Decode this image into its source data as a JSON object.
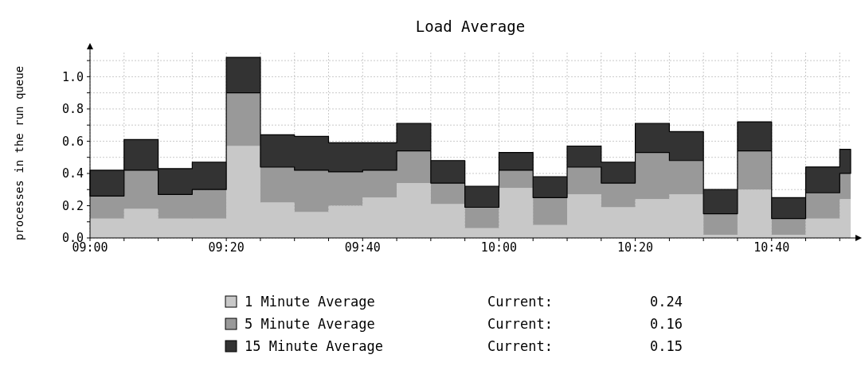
{
  "chart_data": {
    "type": "area",
    "title": "Load Average",
    "ylabel": "processes in the run queue",
    "stacked": true,
    "grid": true,
    "legend": "bottom",
    "x": [
      9,
      9.0833,
      9.0833,
      9.1667,
      9.1667,
      9.25,
      9.25,
      9.3333,
      9.3333,
      9.4167,
      9.4167,
      9.5,
      9.5,
      9.5833,
      9.5833,
      9.6667,
      9.6667,
      9.75,
      9.75,
      9.8333,
      9.8333,
      9.9167,
      9.9167,
      10,
      10,
      10.0833,
      10.0833,
      10.1667,
      10.1667,
      10.25,
      10.25,
      10.3333,
      10.3333,
      10.4167,
      10.4167,
      10.5,
      10.5,
      10.5833,
      10.5833,
      10.6667,
      10.6667,
      10.75,
      10.75,
      10.8333,
      10.8333,
      10.86
    ],
    "series": [
      {
        "name": "1 Minute Average",
        "color": "#c8c8c8",
        "values": [
          0.12,
          0.12,
          0.18,
          0.18,
          0.12,
          0.12,
          0.12,
          0.12,
          0.57,
          0.57,
          0.22,
          0.22,
          0.16,
          0.16,
          0.2,
          0.2,
          0.25,
          0.25,
          0.34,
          0.34,
          0.21,
          0.21,
          0.06,
          0.06,
          0.31,
          0.31,
          0.08,
          0.08,
          0.27,
          0.27,
          0.19,
          0.19,
          0.24,
          0.24,
          0.27,
          0.27,
          0.02,
          0.02,
          0.3,
          0.3,
          0.02,
          0.02,
          0.12,
          0.12,
          0.24,
          0.24
        ]
      },
      {
        "name": "5 Minute Average",
        "color": "#999999",
        "values": [
          0.14,
          0.14,
          0.24,
          0.24,
          0.15,
          0.15,
          0.18,
          0.18,
          0.33,
          0.33,
          0.22,
          0.22,
          0.26,
          0.26,
          0.21,
          0.21,
          0.17,
          0.17,
          0.2,
          0.2,
          0.13,
          0.13,
          0.13,
          0.13,
          0.11,
          0.11,
          0.17,
          0.17,
          0.17,
          0.17,
          0.15,
          0.15,
          0.29,
          0.29,
          0.21,
          0.21,
          0.13,
          0.13,
          0.24,
          0.24,
          0.1,
          0.1,
          0.16,
          0.16,
          0.16,
          0.16
        ]
      },
      {
        "name": "15 Minute Average",
        "color": "#333333",
        "values": [
          0.16,
          0.16,
          0.19,
          0.19,
          0.16,
          0.16,
          0.17,
          0.17,
          0.22,
          0.22,
          0.2,
          0.2,
          0.21,
          0.21,
          0.18,
          0.18,
          0.17,
          0.17,
          0.17,
          0.17,
          0.14,
          0.14,
          0.13,
          0.13,
          0.11,
          0.11,
          0.13,
          0.13,
          0.13,
          0.13,
          0.13,
          0.13,
          0.18,
          0.18,
          0.18,
          0.18,
          0.15,
          0.15,
          0.18,
          0.18,
          0.13,
          0.13,
          0.16,
          0.16,
          0.15,
          0.15
        ]
      }
    ],
    "annotations": [
      "Current: 0.24",
      "Current: 0.16",
      "Current: 0.15"
    ],
    "xlim": [
      9,
      10.86
    ],
    "xticks": [
      {
        "value": 9,
        "label": "09:00"
      },
      {
        "value": 9.0833,
        "label": null
      },
      {
        "value": 9.1667,
        "label": null
      },
      {
        "value": 9.25,
        "label": null
      },
      {
        "value": 9.3333,
        "label": "09:20"
      },
      {
        "value": 9.4167,
        "label": null
      },
      {
        "value": 9.5,
        "label": null
      },
      {
        "value": 9.5833,
        "label": null
      },
      {
        "value": 9.6667,
        "label": "09:40"
      },
      {
        "value": 9.75,
        "label": null
      },
      {
        "value": 9.8333,
        "label": null
      },
      {
        "value": 9.9167,
        "label": null
      },
      {
        "value": 10,
        "label": "10:00"
      },
      {
        "value": 10.0833,
        "label": null
      },
      {
        "value": 10.1667,
        "label": null
      },
      {
        "value": 10.25,
        "label": null
      },
      {
        "value": 10.3333,
        "label": "10:20"
      },
      {
        "value": 10.4167,
        "label": null
      },
      {
        "value": 10.5,
        "label": null
      },
      {
        "value": 10.5833,
        "label": null
      },
      {
        "value": 10.6667,
        "label": "10:40"
      },
      {
        "value": 10.75,
        "label": null
      },
      {
        "value": 10.8333,
        "label": null
      }
    ],
    "ylim": [
      0,
      1.15
    ],
    "yticks": [
      {
        "value": 0,
        "label": "0.0"
      },
      {
        "value": 0.1,
        "label": null
      },
      {
        "value": 0.2,
        "label": "0.2"
      },
      {
        "value": 0.3,
        "label": null
      },
      {
        "value": 0.4,
        "label": "0.4"
      },
      {
        "value": 0.5,
        "label": null
      },
      {
        "value": 0.6,
        "label": "0.6"
      },
      {
        "value": 0.7,
        "label": null
      },
      {
        "value": 0.8,
        "label": "0.8"
      },
      {
        "value": 0.9,
        "label": null
      },
      {
        "value": 1.0,
        "label": "1.0"
      },
      {
        "value": 1.1,
        "label": null
      }
    ]
  }
}
